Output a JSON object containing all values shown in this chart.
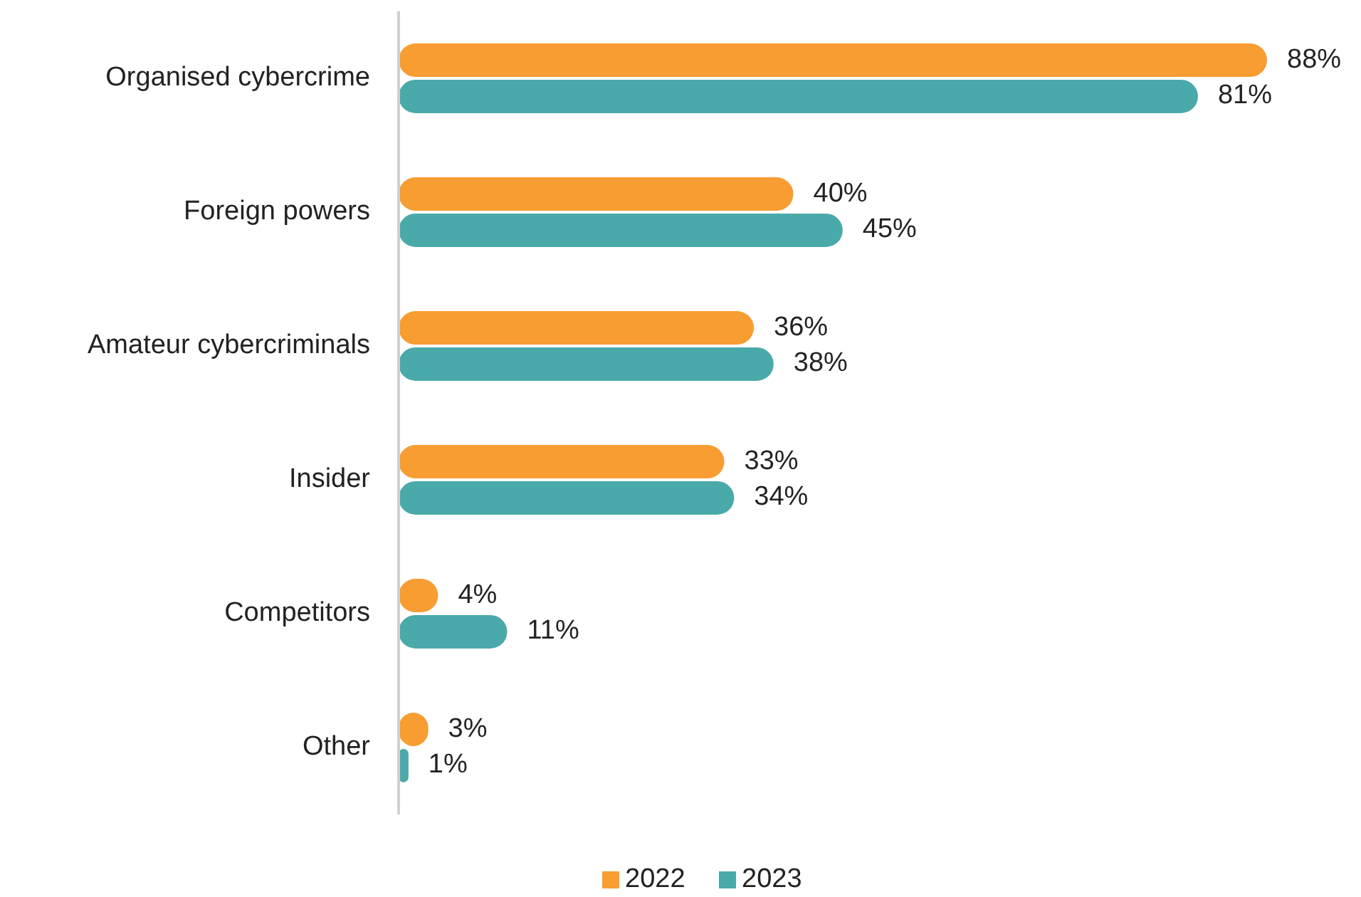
{
  "chart_data": {
    "type": "bar",
    "orientation": "horizontal",
    "categories": [
      "Organised cybercrime",
      "Foreign powers",
      "Amateur cybercriminals",
      "Insider",
      "Competitors",
      "Other"
    ],
    "series": [
      {
        "name": "2022",
        "color": "#f79d32",
        "values": [
          88,
          40,
          36,
          33,
          4,
          3
        ],
        "value_labels": [
          "88%",
          "40%",
          "36%",
          "33%",
          "4%",
          "3%"
        ]
      },
      {
        "name": "2023",
        "color": "#4aaaa9",
        "values": [
          81,
          45,
          38,
          34,
          11,
          1
        ],
        "value_labels": [
          "81%",
          "45%",
          "38%",
          "34%",
          "11%",
          "1%"
        ]
      }
    ],
    "legend": "bottom"
  }
}
